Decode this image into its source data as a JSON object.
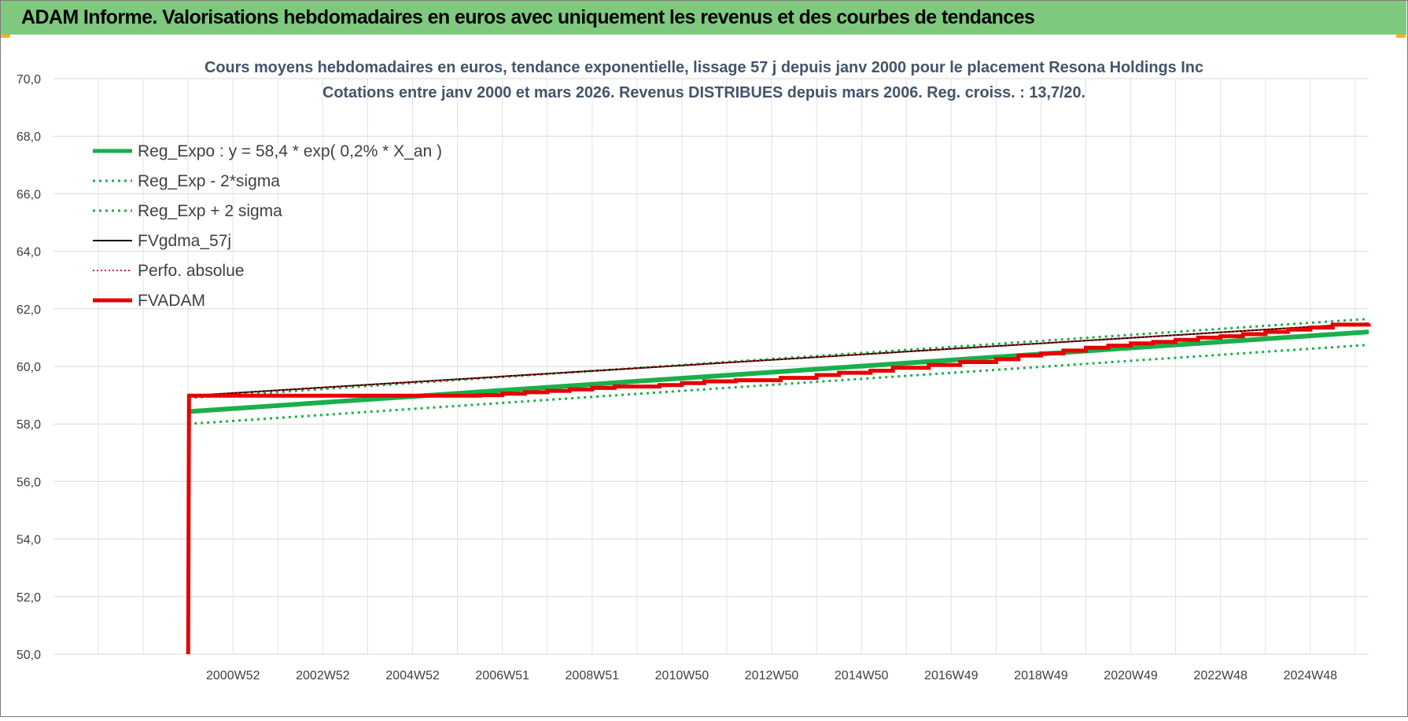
{
  "banner": {
    "title": "ADAM Informe. Valorisations hebdomadaires en euros avec uniquement les revenus et des courbes de tendances"
  },
  "colors": {
    "banner_bg": "#7fc97f",
    "reg_expo": "#1aaf4b",
    "sigma_lines": "#1aaf4b",
    "fvgdma": "#000000",
    "perfo": "#e01010",
    "fvadam": "#e60000",
    "grid": "#d9d9d9",
    "title_text": "#44546a"
  },
  "chart_data": {
    "type": "line",
    "title": "Cours moyens hebdomadaires en euros, tendance exponentielle, lissage 57 j depuis janv 2000  pour le  placement Resona Holdings Inc",
    "subtitle": "Cotations entre janv 2000 et mars 2026. Revenus DISTRIBUES depuis mars 2006. Reg. croiss. : 13,7/20.",
    "xlabel": "",
    "ylabel": "",
    "ylim": [
      50,
      70
    ],
    "y_ticks": [
      "70,0",
      "68,0",
      "66,0",
      "64,0",
      "62,0",
      "60,0",
      "58,0",
      "56,0",
      "54,0",
      "52,0",
      "50,0"
    ],
    "y_tick_values": [
      70,
      68,
      66,
      64,
      62,
      60,
      58,
      56,
      54,
      52,
      50
    ],
    "xlim": [
      1997,
      2026.3
    ],
    "x_tick_labels": [
      "2000W52",
      "2002W52",
      "2004W52",
      "2006W51",
      "2008W51",
      "2010W50",
      "2012W50",
      "2014W50",
      "2016W49",
      "2018W49",
      "2020W49",
      "2022W48",
      "2024W48"
    ],
    "x_tick_values": [
      2001,
      2003,
      2005,
      2007,
      2009,
      2011,
      2013,
      2015,
      2017,
      2019,
      2021,
      2023,
      2025
    ],
    "grid": true,
    "legend_position": "top-left",
    "series": [
      {
        "name": "Reg_Expo : y = 58,4 * exp( 0,2% *  X_an )",
        "style": "solid-thick",
        "color": "#1aaf4b",
        "x": [
          2000.0,
          2026.3
        ],
        "y": [
          58.43,
          61.2
        ]
      },
      {
        "name": "Reg_Exp - 2*sigma",
        "style": "dotted",
        "color": "#1aaf4b",
        "x": [
          2000.0,
          2026.3
        ],
        "y": [
          58.0,
          60.75
        ]
      },
      {
        "name": "Reg_Exp + 2 sigma",
        "style": "dotted",
        "color": "#1aaf4b",
        "x": [
          2000.0,
          2026.3
        ],
        "y": [
          58.9,
          61.65
        ]
      },
      {
        "name": "FVgdma_57j",
        "style": "solid",
        "color": "#000000",
        "x": [
          2000.0,
          2000.02,
          2026.3
        ],
        "y": [
          50.0,
          58.98,
          61.5
        ]
      },
      {
        "name": "Perfo. absolue",
        "style": "dotted-red",
        "color": "#e01010",
        "x": [
          2000.0,
          2000.02,
          2026.3
        ],
        "y": [
          50.0,
          58.98,
          61.5
        ]
      },
      {
        "name": "FVADAM",
        "style": "solid-thick-step",
        "color": "#e60000",
        "x": [
          2000.0,
          2000.02,
          2006.2,
          2006.5,
          2007.0,
          2007.5,
          2008.0,
          2008.5,
          2009.0,
          2009.5,
          2010.0,
          2010.5,
          2011.0,
          2011.5,
          2012.2,
          2013.2,
          2014.0,
          2014.5,
          2015.2,
          2015.7,
          2016.5,
          2017.2,
          2018.0,
          2018.5,
          2019.0,
          2019.5,
          2020.0,
          2020.5,
          2021.0,
          2021.5,
          2022.0,
          2022.5,
          2023.0,
          2023.5,
          2024.0,
          2024.5,
          2025.0,
          2025.5,
          2026.3
        ],
        "y": [
          50.0,
          58.98,
          58.98,
          59.0,
          59.05,
          59.1,
          59.15,
          59.2,
          59.25,
          59.3,
          59.3,
          59.35,
          59.42,
          59.48,
          59.52,
          59.6,
          59.7,
          59.78,
          59.85,
          59.95,
          60.05,
          60.15,
          60.25,
          60.38,
          60.45,
          60.55,
          60.65,
          60.72,
          60.8,
          60.85,
          60.92,
          61.0,
          61.05,
          61.12,
          61.2,
          61.28,
          61.35,
          61.45,
          61.5
        ]
      }
    ]
  }
}
